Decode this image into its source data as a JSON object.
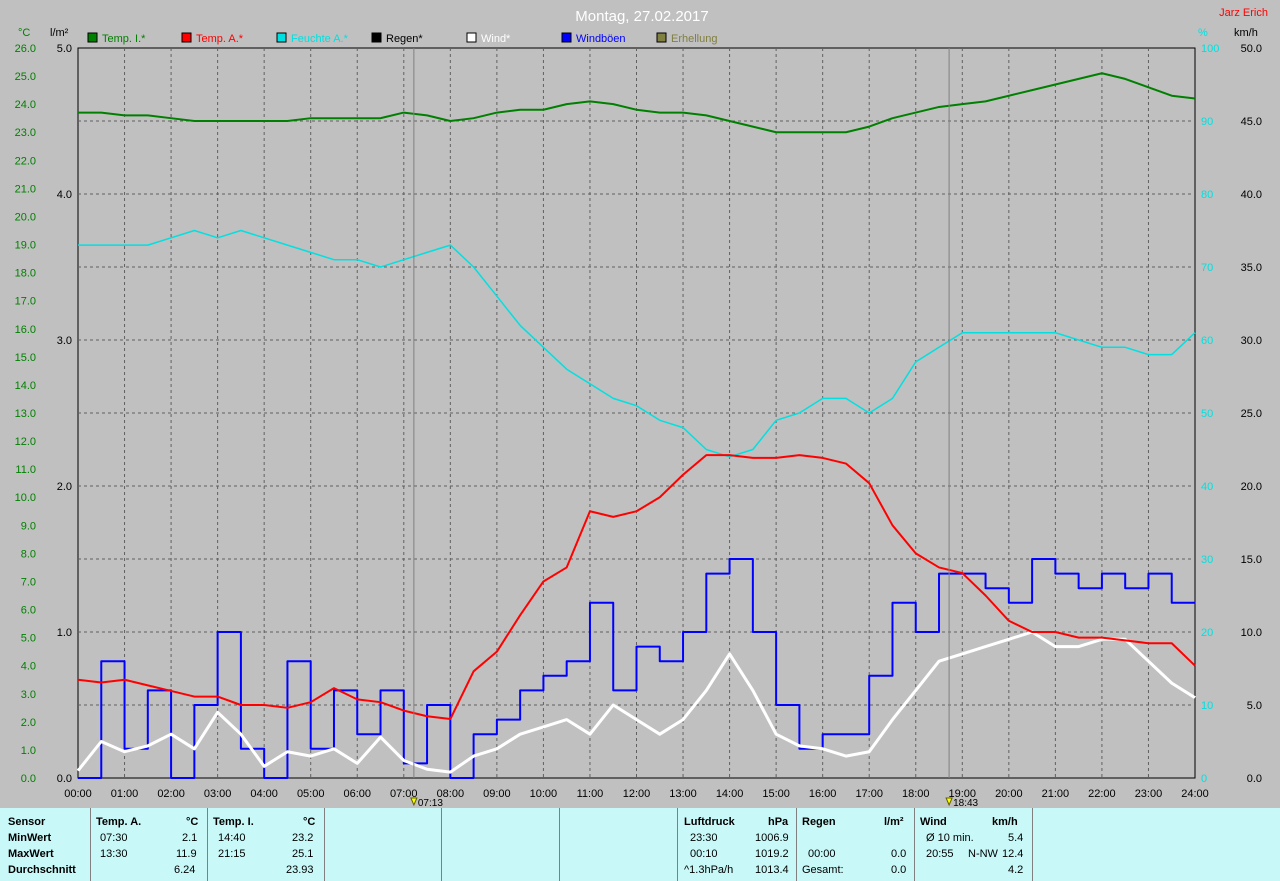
{
  "title": "Montag, 27.02.2017",
  "author": "Jarz Erich",
  "colors": {
    "temp_in": "#008000",
    "temp_out": "#ff0000",
    "humidity": "#00e0e0",
    "rain": "#000000",
    "wind": "#ffffff",
    "gust": "#0000ff",
    "illum": "#808040"
  },
  "axis_units": {
    "temp": "°C",
    "rain": "l/m²",
    "humidity": "%",
    "wind": "km/h"
  },
  "sun_events": {
    "sunrise": "07:13",
    "sunset": "18:43"
  },
  "chart_data": {
    "type": "line",
    "title": "Montag, 27.02.2017",
    "legend": [
      "Temp. I.*",
      "Temp. A.*",
      "Feuchte A.*",
      "Regen*",
      "Wind*",
      "Windböen",
      "Erhellung"
    ],
    "x_ticks": [
      "00:00",
      "01:00",
      "02:00",
      "03:00",
      "04:00",
      "05:00",
      "06:00",
      "07:00",
      "08:00",
      "09:00",
      "10:00",
      "11:00",
      "12:00",
      "13:00",
      "14:00",
      "15:00",
      "16:00",
      "17:00",
      "18:00",
      "19:00",
      "20:00",
      "21:00",
      "22:00",
      "23:00",
      "24:00"
    ],
    "axes": {
      "temp": {
        "min": 0,
        "max": 26,
        "step": 1,
        "ticks": [
          "0.0",
          "1.0",
          "2.0",
          "3.0",
          "4.0",
          "5.0",
          "6.0",
          "7.0",
          "8.0",
          "9.0",
          "10.0",
          "11.0",
          "12.0",
          "13.0",
          "14.0",
          "15.0",
          "16.0",
          "17.0",
          "18.0",
          "19.0",
          "20.0",
          "21.0",
          "22.0",
          "23.0",
          "24.0",
          "25.0",
          "26.0"
        ]
      },
      "rain": {
        "min": 0,
        "max": 5,
        "ticks": [
          "0.0",
          "1.0",
          "2.0",
          "3.0",
          "4.0",
          "5.0"
        ]
      },
      "humidity": {
        "min": 0,
        "max": 100,
        "ticks": [
          "0",
          "10",
          "20",
          "30",
          "40",
          "50",
          "60",
          "70",
          "80",
          "90",
          "100"
        ]
      },
      "wind": {
        "min": 0,
        "max": 50,
        "ticks": [
          "0.0",
          "5.0",
          "10.0",
          "15.0",
          "20.0",
          "25.0",
          "30.0",
          "35.0",
          "40.0",
          "45.0",
          "50.0"
        ]
      }
    },
    "series": [
      {
        "name": "Temp. I.*",
        "axis": "temp",
        "x": [
          0,
          0.5,
          1,
          1.5,
          2,
          2.5,
          3,
          3.5,
          4,
          4.5,
          5,
          5.5,
          6,
          6.5,
          7,
          7.5,
          8,
          8.5,
          9,
          9.5,
          10,
          10.5,
          11,
          11.5,
          12,
          12.5,
          13,
          13.5,
          14,
          14.5,
          15,
          15.5,
          16,
          16.5,
          17,
          17.5,
          18,
          18.5,
          19,
          19.5,
          20,
          20.5,
          21,
          21.5,
          22,
          22.5,
          23,
          23.5,
          24
        ],
        "y": [
          23.7,
          23.7,
          23.6,
          23.6,
          23.5,
          23.4,
          23.4,
          23.4,
          23.4,
          23.4,
          23.5,
          23.5,
          23.5,
          23.5,
          23.7,
          23.6,
          23.4,
          23.5,
          23.7,
          23.8,
          23.8,
          24.0,
          24.1,
          24.0,
          23.8,
          23.7,
          23.7,
          23.6,
          23.4,
          23.2,
          23.0,
          23.0,
          23.0,
          23.0,
          23.2,
          23.5,
          23.7,
          23.9,
          24.0,
          24.1,
          24.3,
          24.5,
          24.7,
          24.9,
          25.1,
          24.9,
          24.6,
          24.3,
          24.2
        ]
      },
      {
        "name": "Temp. A.*",
        "axis": "temp",
        "x": [
          0,
          0.5,
          1,
          1.5,
          2,
          2.5,
          3,
          3.5,
          4,
          4.5,
          5,
          5.5,
          6,
          6.5,
          7,
          7.5,
          8,
          8.5,
          9,
          9.5,
          10,
          10.5,
          11,
          11.5,
          12,
          12.5,
          13,
          13.5,
          14,
          14.5,
          15,
          15.5,
          16,
          16.5,
          17,
          17.5,
          18,
          18.5,
          19,
          19.5,
          20,
          20.5,
          21,
          21.5,
          22,
          22.5,
          23,
          23.5,
          24
        ],
        "y": [
          3.5,
          3.4,
          3.5,
          3.3,
          3.1,
          2.9,
          2.9,
          2.6,
          2.6,
          2.5,
          2.7,
          3.2,
          2.8,
          2.7,
          2.4,
          2.2,
          2.1,
          3.8,
          4.5,
          5.8,
          7.0,
          7.5,
          9.5,
          9.3,
          9.5,
          10.0,
          10.8,
          11.5,
          11.5,
          11.4,
          11.4,
          11.5,
          11.4,
          11.2,
          10.5,
          9.0,
          8.0,
          7.5,
          7.3,
          6.5,
          5.6,
          5.2,
          5.2,
          5.0,
          5.0,
          4.9,
          4.8,
          4.8,
          4.0
        ]
      },
      {
        "name": "Feuchte A.*",
        "axis": "humidity",
        "x": [
          0,
          0.5,
          1,
          1.5,
          2,
          2.5,
          3,
          3.5,
          4,
          4.5,
          5,
          5.5,
          6,
          6.5,
          7,
          7.5,
          8,
          8.5,
          9,
          9.5,
          10,
          10.5,
          11,
          11.5,
          12,
          12.5,
          13,
          13.5,
          14,
          14.5,
          15,
          15.5,
          16,
          16.5,
          17,
          17.5,
          18,
          18.5,
          19,
          19.5,
          20,
          20.5,
          21,
          21.5,
          22,
          22.5,
          23,
          23.5,
          24
        ],
        "y": [
          73,
          73,
          73,
          73,
          74,
          75,
          74,
          75,
          74,
          73,
          72,
          71,
          71,
          70,
          71,
          72,
          73,
          70,
          66,
          62,
          59,
          56,
          54,
          52,
          51,
          49,
          48,
          45,
          44,
          45,
          49,
          50,
          52,
          52,
          50,
          52,
          57,
          59,
          61,
          61,
          61,
          61,
          61,
          60,
          59,
          59,
          58,
          58,
          61
        ]
      },
      {
        "name": "Wind*",
        "axis": "wind",
        "x": [
          0,
          0.5,
          1,
          1.5,
          2,
          2.5,
          3,
          3.5,
          4,
          4.5,
          5,
          5.5,
          6,
          6.5,
          7,
          7.5,
          8,
          8.5,
          9,
          9.5,
          10,
          10.5,
          11,
          11.5,
          12,
          12.5,
          13,
          13.5,
          14,
          14.5,
          15,
          15.5,
          16,
          16.5,
          17,
          17.5,
          18,
          18.5,
          19,
          19.5,
          20,
          20.5,
          21,
          21.5,
          22,
          22.5,
          23,
          23.5,
          24
        ],
        "y": [
          0.5,
          2.5,
          1.8,
          2.2,
          3.0,
          2.0,
          4.5,
          3.0,
          0.8,
          1.8,
          1.5,
          2.0,
          1.0,
          2.8,
          1.2,
          0.6,
          0.4,
          1.5,
          2.0,
          3.0,
          3.5,
          4.0,
          3.0,
          5.0,
          4.0,
          3.0,
          4.0,
          6.0,
          8.5,
          6.0,
          3.0,
          2.2,
          2.0,
          1.5,
          1.8,
          4.0,
          6.0,
          8.0,
          8.5,
          9.0,
          9.5,
          10.0,
          9.0,
          9.0,
          9.5,
          9.5,
          8.0,
          6.5,
          5.5
        ]
      },
      {
        "name": "Windböen",
        "axis": "wind",
        "x": [
          0,
          0.5,
          1,
          1.5,
          2,
          2.5,
          3,
          3.5,
          4,
          4.5,
          5,
          5.5,
          6,
          6.5,
          7,
          7.5,
          8,
          8.5,
          9,
          9.5,
          10,
          10.5,
          11,
          11.5,
          12,
          12.5,
          13,
          13.5,
          14,
          14.5,
          15,
          15.5,
          16,
          16.5,
          17,
          17.5,
          18,
          18.5,
          19,
          19.5,
          20,
          20.5,
          21,
          21.5,
          22,
          22.5,
          23,
          23.5,
          24
        ],
        "y": [
          0,
          8,
          2,
          6,
          0,
          5,
          10,
          2,
          0,
          8,
          2,
          6,
          3,
          6,
          1,
          5,
          0,
          3,
          4,
          6,
          7,
          8,
          12,
          6,
          9,
          8,
          10,
          14,
          15,
          10,
          5,
          2,
          3,
          3,
          7,
          12,
          10,
          14,
          14,
          13,
          12,
          15,
          14,
          13,
          14,
          13,
          14,
          12,
          12
        ]
      }
    ]
  },
  "table": {
    "col1": {
      "h1": "Sensor",
      "rows": [
        "MinWert",
        "MaxWert",
        "Durchschnitt"
      ]
    },
    "temp_a": {
      "title": "Temp. A.",
      "unit": "°C",
      "min_time": "07:30",
      "min_val": "2.1",
      "max_time": "13:30",
      "max_val": "11.9",
      "avg": "6.24"
    },
    "temp_i": {
      "title": "Temp. I.",
      "unit": "°C",
      "min_time": "14:40",
      "min_val": "23.2",
      "max_time": "21:15",
      "max_val": "25.1",
      "avg": "23.93"
    },
    "pressure": {
      "title": "Luftdruck",
      "unit": "hPa",
      "min_time": "23:30",
      "min_val": "1006.9",
      "max_time": "00:10",
      "max_val": "1019.2",
      "avg_label": "^1.3hPa/h",
      "avg": "1013.4"
    },
    "rain": {
      "title": "Regen",
      "unit": "l/m²",
      "max_time": "00:00",
      "max_val": "0.0",
      "total_label": "Gesamt:",
      "total": "0.0"
    },
    "wind": {
      "title": "Wind",
      "unit": "km/h",
      "min_label": "Ø 10 min.",
      "min_val": "5.4",
      "max_time": "20:55",
      "max_dir": "N-NW",
      "max_val": "12.4",
      "avg": "4.2"
    }
  }
}
